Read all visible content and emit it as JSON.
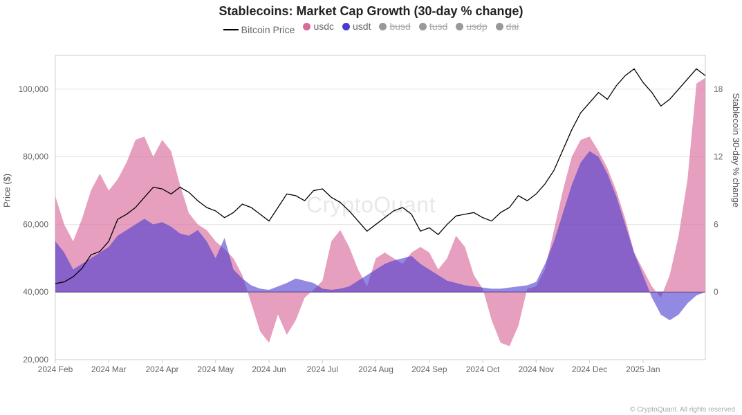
{
  "chart": {
    "type": "line+area",
    "title": "Stablecoins: Market Cap Growth (30-day % change)",
    "title_fontsize": 18,
    "title_fontweight": 700,
    "background_color": "#ffffff",
    "grid_color": "#e8e8e8",
    "axis_color": "#cccccc",
    "text_color": "#666666",
    "watermark": "CryptoQuant",
    "watermark_color": "#e8e8e8",
    "copyright": "© CryptoQuant. All rights reserved",
    "legend": {
      "items": [
        {
          "label": "Bitcoin Price",
          "type": "line",
          "color": "#000000",
          "enabled": true
        },
        {
          "label": "usdc",
          "type": "area",
          "color": "#d86b9b",
          "enabled": true
        },
        {
          "label": "usdt",
          "type": "area",
          "color": "#4a3bd0",
          "enabled": true
        },
        {
          "label": "busd",
          "type": "area",
          "color": "#999999",
          "enabled": false
        },
        {
          "label": "tusd",
          "type": "area",
          "color": "#999999",
          "enabled": false
        },
        {
          "label": "usdp",
          "type": "area",
          "color": "#999999",
          "enabled": false
        },
        {
          "label": "dai",
          "type": "area",
          "color": "#999999",
          "enabled": false
        }
      ]
    },
    "y_left": {
      "label": "Price ($)",
      "min": 20000,
      "max": 110000,
      "ticks": [
        20000,
        40000,
        60000,
        80000,
        100000
      ],
      "tick_labels": [
        "20,000",
        "40,000",
        "60,000",
        "80,000",
        "100,000"
      ]
    },
    "y_right": {
      "label": "Stablecoin 30-day % change",
      "min": -6,
      "max": 21,
      "ticks": [
        0,
        6,
        12,
        18
      ],
      "tick_labels": [
        "0",
        "6",
        "12",
        "18"
      ]
    },
    "x_axis": {
      "min": 0,
      "max": 365,
      "ticks": [
        0,
        30,
        60,
        90,
        120,
        150,
        180,
        210,
        240,
        270,
        300,
        330
      ],
      "tick_labels": [
        "2024 Feb",
        "2024 Mar",
        "2024 Apr",
        "2024 May",
        "2024 Jun",
        "2024 Jul",
        "2024 Aug",
        "2024 Sep",
        "2024 Oct",
        "2024 Nov",
        "2024 Dec",
        "2025 Jan"
      ]
    },
    "series": {
      "bitcoin_price": {
        "color": "#000000",
        "line_width": 1.3,
        "data": [
          [
            0,
            42500
          ],
          [
            5,
            43000
          ],
          [
            10,
            44500
          ],
          [
            15,
            47000
          ],
          [
            20,
            51000
          ],
          [
            25,
            52000
          ],
          [
            30,
            55000
          ],
          [
            35,
            61500
          ],
          [
            40,
            63000
          ],
          [
            45,
            65000
          ],
          [
            50,
            68000
          ],
          [
            55,
            71000
          ],
          [
            60,
            70500
          ],
          [
            65,
            69000
          ],
          [
            70,
            71000
          ],
          [
            75,
            69500
          ],
          [
            80,
            67000
          ],
          [
            85,
            65000
          ],
          [
            90,
            64000
          ],
          [
            95,
            62000
          ],
          [
            100,
            63500
          ],
          [
            105,
            66000
          ],
          [
            110,
            65000
          ],
          [
            115,
            63000
          ],
          [
            120,
            61000
          ],
          [
            125,
            65000
          ],
          [
            130,
            69000
          ],
          [
            135,
            68500
          ],
          [
            140,
            67000
          ],
          [
            145,
            70000
          ],
          [
            150,
            70500
          ],
          [
            155,
            68000
          ],
          [
            160,
            66500
          ],
          [
            165,
            64000
          ],
          [
            170,
            61000
          ],
          [
            175,
            58000
          ],
          [
            180,
            60000
          ],
          [
            185,
            62000
          ],
          [
            190,
            64000
          ],
          [
            195,
            65000
          ],
          [
            200,
            63000
          ],
          [
            205,
            58000
          ],
          [
            210,
            59000
          ],
          [
            215,
            57000
          ],
          [
            220,
            60000
          ],
          [
            225,
            62500
          ],
          [
            230,
            63000
          ],
          [
            235,
            63500
          ],
          [
            240,
            62000
          ],
          [
            245,
            61000
          ],
          [
            250,
            63500
          ],
          [
            255,
            65000
          ],
          [
            260,
            68500
          ],
          [
            265,
            67000
          ],
          [
            270,
            69000
          ],
          [
            275,
            72000
          ],
          [
            280,
            76000
          ],
          [
            285,
            82000
          ],
          [
            290,
            88000
          ],
          [
            295,
            93000
          ],
          [
            300,
            96000
          ],
          [
            305,
            99000
          ],
          [
            310,
            97000
          ],
          [
            315,
            101000
          ],
          [
            320,
            104000
          ],
          [
            325,
            106000
          ],
          [
            330,
            102000
          ],
          [
            335,
            99000
          ],
          [
            340,
            95000
          ],
          [
            345,
            97000
          ],
          [
            350,
            100000
          ],
          [
            355,
            103000
          ],
          [
            360,
            106000
          ],
          [
            365,
            104000
          ]
        ]
      },
      "usdc": {
        "color": "#d86b9b",
        "fill_opacity": 0.65,
        "data": [
          [
            0,
            8.5
          ],
          [
            5,
            6.0
          ],
          [
            10,
            4.5
          ],
          [
            15,
            6.5
          ],
          [
            20,
            9.0
          ],
          [
            25,
            10.5
          ],
          [
            30,
            9.0
          ],
          [
            35,
            10.0
          ],
          [
            40,
            11.5
          ],
          [
            45,
            13.5
          ],
          [
            50,
            13.8
          ],
          [
            55,
            12.0
          ],
          [
            60,
            13.5
          ],
          [
            65,
            12.5
          ],
          [
            70,
            9.5
          ],
          [
            75,
            7.0
          ],
          [
            80,
            6.0
          ],
          [
            85,
            5.5
          ],
          [
            90,
            4.5
          ],
          [
            95,
            3.8
          ],
          [
            100,
            3.0
          ],
          [
            105,
            1.5
          ],
          [
            110,
            -1.0
          ],
          [
            115,
            -3.5
          ],
          [
            120,
            -4.5
          ],
          [
            125,
            -2.0
          ],
          [
            130,
            -3.8
          ],
          [
            135,
            -2.5
          ],
          [
            140,
            -0.5
          ],
          [
            145,
            0.2
          ],
          [
            150,
            1.0
          ],
          [
            155,
            4.5
          ],
          [
            160,
            5.5
          ],
          [
            165,
            4.0
          ],
          [
            170,
            2.0
          ],
          [
            175,
            0.5
          ],
          [
            180,
            3.0
          ],
          [
            185,
            3.5
          ],
          [
            190,
            3.0
          ],
          [
            195,
            2.5
          ],
          [
            200,
            3.5
          ],
          [
            205,
            4.0
          ],
          [
            210,
            3.5
          ],
          [
            215,
            2.0
          ],
          [
            220,
            3.0
          ],
          [
            225,
            5.0
          ],
          [
            230,
            4.0
          ],
          [
            235,
            1.5
          ],
          [
            240,
            0.3
          ],
          [
            245,
            -2.5
          ],
          [
            250,
            -4.5
          ],
          [
            255,
            -4.8
          ],
          [
            260,
            -3.0
          ],
          [
            265,
            0.3
          ],
          [
            270,
            0.5
          ],
          [
            275,
            2.0
          ],
          [
            280,
            5.5
          ],
          [
            285,
            9.0
          ],
          [
            290,
            12.0
          ],
          [
            295,
            13.5
          ],
          [
            300,
            13.8
          ],
          [
            305,
            12.5
          ],
          [
            310,
            11.0
          ],
          [
            315,
            9.0
          ],
          [
            320,
            6.5
          ],
          [
            325,
            3.5
          ],
          [
            330,
            2.0
          ],
          [
            335,
            0.5
          ],
          [
            340,
            -0.5
          ],
          [
            345,
            1.5
          ],
          [
            350,
            5.0
          ],
          [
            355,
            10.0
          ],
          [
            360,
            18.5
          ],
          [
            365,
            19.0
          ]
        ]
      },
      "usdt": {
        "color": "#4a3bd0",
        "fill_opacity": 0.6,
        "data": [
          [
            0,
            4.5
          ],
          [
            5,
            3.5
          ],
          [
            10,
            2.0
          ],
          [
            15,
            2.5
          ],
          [
            20,
            3.0
          ],
          [
            25,
            3.5
          ],
          [
            30,
            4.0
          ],
          [
            35,
            5.0
          ],
          [
            40,
            5.5
          ],
          [
            45,
            6.0
          ],
          [
            50,
            6.5
          ],
          [
            55,
            6.0
          ],
          [
            60,
            6.2
          ],
          [
            65,
            5.8
          ],
          [
            70,
            5.2
          ],
          [
            75,
            5.0
          ],
          [
            80,
            5.5
          ],
          [
            85,
            4.5
          ],
          [
            90,
            3.0
          ],
          [
            95,
            4.8
          ],
          [
            100,
            2.0
          ],
          [
            105,
            1.2
          ],
          [
            110,
            0.6
          ],
          [
            115,
            0.3
          ],
          [
            120,
            0.2
          ],
          [
            125,
            0.5
          ],
          [
            130,
            0.8
          ],
          [
            135,
            1.2
          ],
          [
            140,
            1.0
          ],
          [
            145,
            0.8
          ],
          [
            150,
            0.3
          ],
          [
            155,
            0.2
          ],
          [
            160,
            0.3
          ],
          [
            165,
            0.5
          ],
          [
            170,
            1.0
          ],
          [
            175,
            1.5
          ],
          [
            180,
            2.0
          ],
          [
            185,
            2.5
          ],
          [
            190,
            2.8
          ],
          [
            195,
            3.0
          ],
          [
            200,
            3.2
          ],
          [
            205,
            2.5
          ],
          [
            210,
            2.0
          ],
          [
            215,
            1.5
          ],
          [
            220,
            1.0
          ],
          [
            225,
            0.8
          ],
          [
            230,
            0.6
          ],
          [
            235,
            0.5
          ],
          [
            240,
            0.4
          ],
          [
            245,
            0.3
          ],
          [
            250,
            0.3
          ],
          [
            255,
            0.4
          ],
          [
            260,
            0.5
          ],
          [
            265,
            0.6
          ],
          [
            270,
            0.9
          ],
          [
            275,
            2.5
          ],
          [
            280,
            4.5
          ],
          [
            285,
            7.0
          ],
          [
            290,
            9.5
          ],
          [
            295,
            11.5
          ],
          [
            300,
            12.5
          ],
          [
            305,
            12.0
          ],
          [
            310,
            10.5
          ],
          [
            315,
            8.5
          ],
          [
            320,
            6.0
          ],
          [
            325,
            3.5
          ],
          [
            330,
            1.5
          ],
          [
            335,
            -0.5
          ],
          [
            340,
            -2.0
          ],
          [
            345,
            -2.5
          ],
          [
            350,
            -2.0
          ],
          [
            355,
            -1.0
          ],
          [
            360,
            -0.3
          ],
          [
            365,
            0.0
          ]
        ]
      }
    }
  }
}
